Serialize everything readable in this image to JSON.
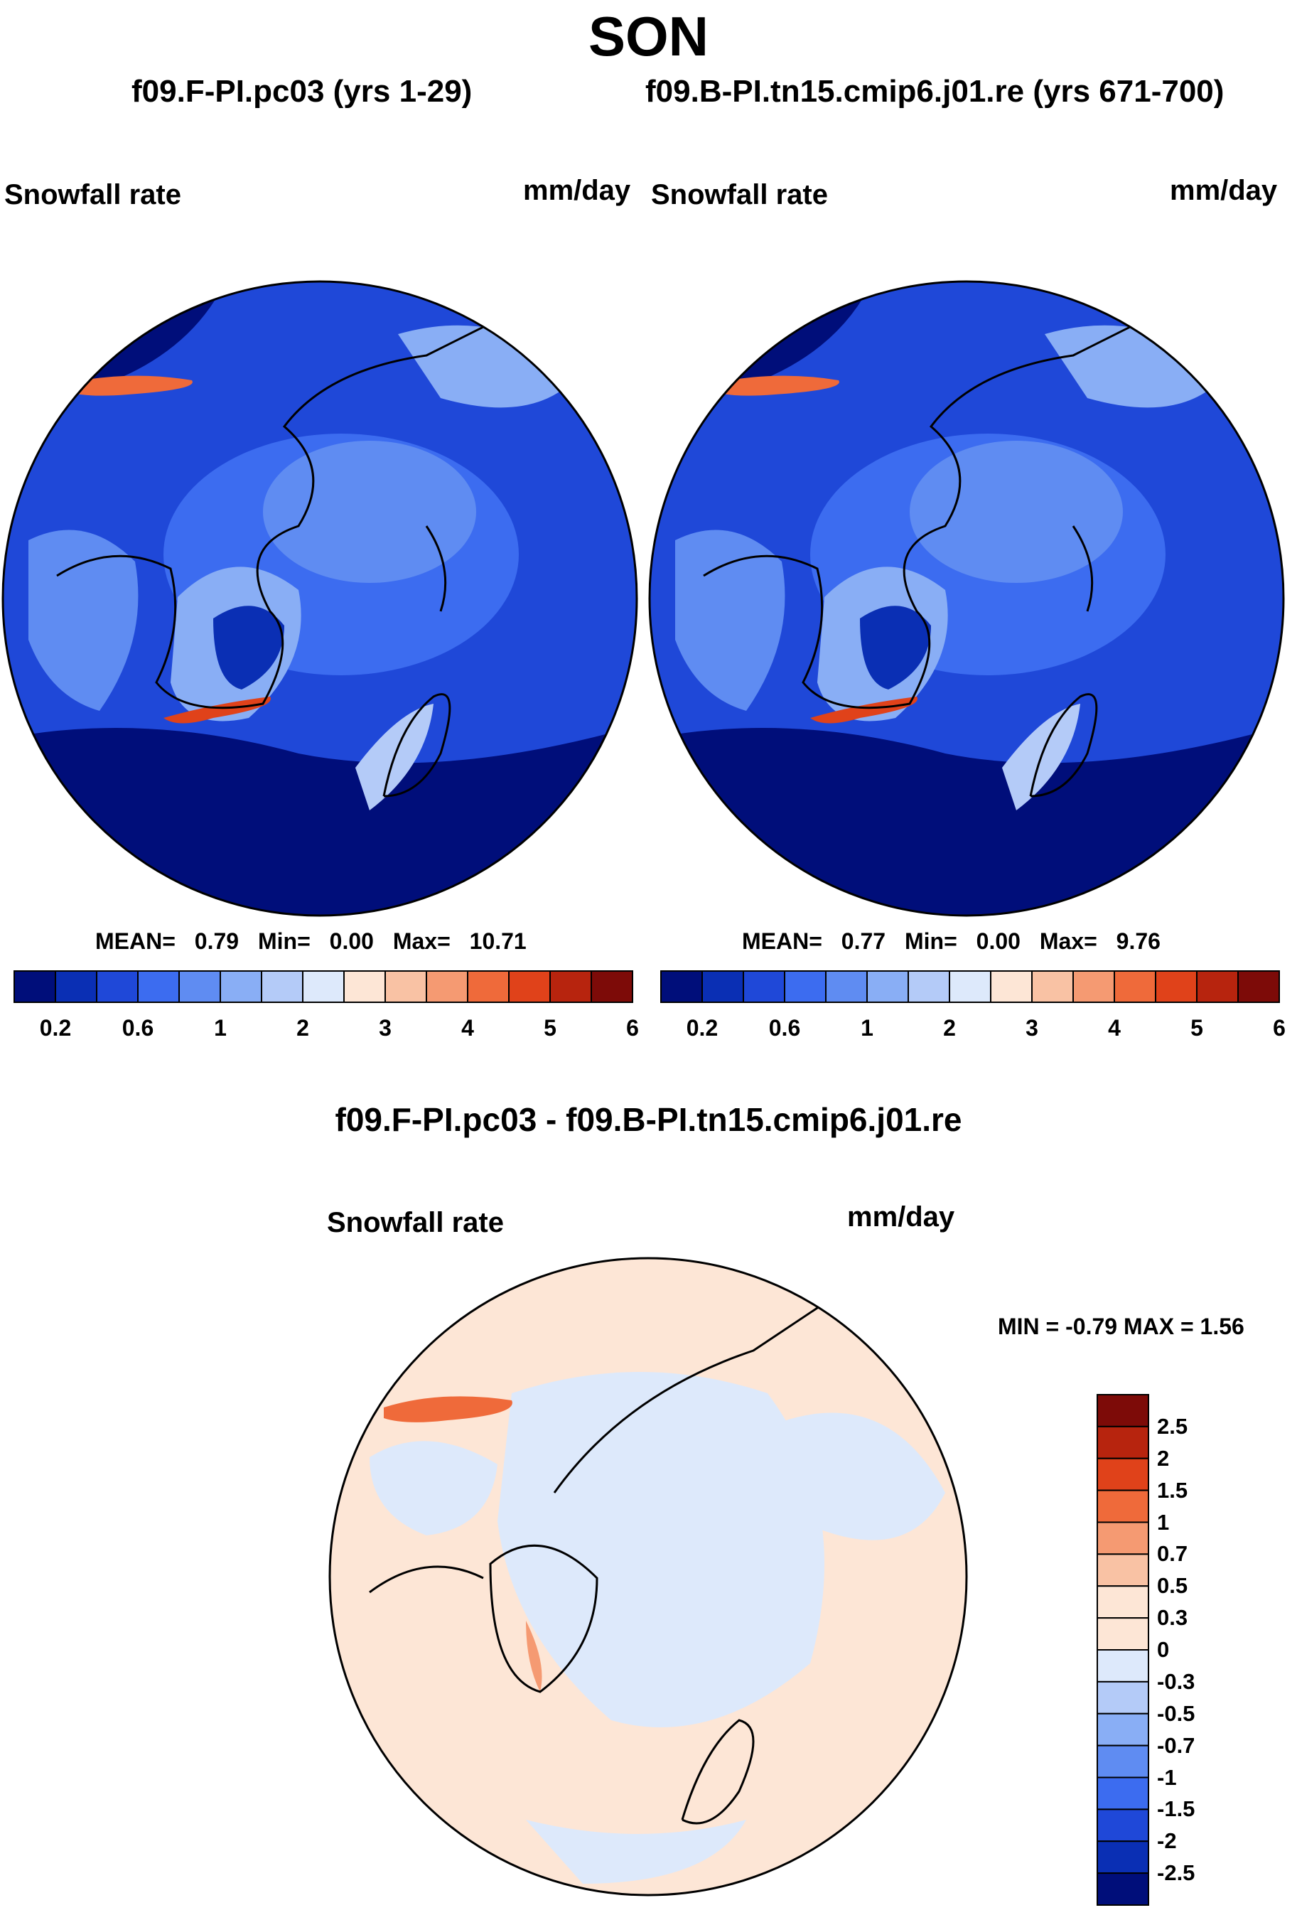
{
  "figure": {
    "season": "SON",
    "case_left": "f09.F-PI.pc03 (yrs 1-29)",
    "case_right": "f09.B-PI.tn15.cmip6.j01.re (yrs 671-700)",
    "diff_title": "f09.F-PI.pc03 - f09.B-PI.tn15.cmip6.j01.re"
  },
  "panels": {
    "left": {
      "variable": "Snowfall rate",
      "units": "mm/day",
      "stats": {
        "mean_label": "MEAN=",
        "mean": "0.79",
        "min_label": "Min=",
        "min": "0.00",
        "max_label": "Max=",
        "max": "10.71"
      }
    },
    "right": {
      "variable": "Snowfall rate",
      "units": "mm/day",
      "stats": {
        "mean_label": "MEAN=",
        "mean": "0.77",
        "min_label": "Min=",
        "min": "0.00",
        "max_label": "Max=",
        "max": "9.76"
      }
    },
    "diff": {
      "variable": "Snowfall rate",
      "units": "mm/day",
      "minmax": "MIN = -0.79 MAX = 1.56"
    }
  },
  "colorbars": {
    "abs": {
      "tick_labels": [
        "0.2",
        "0.6",
        "1",
        "2",
        "3",
        "4",
        "5",
        "6"
      ],
      "colors": [
        "#000e7a",
        "#0a2fb4",
        "#1f48d8",
        "#3c6cf0",
        "#5f8cf2",
        "#89aef5",
        "#b4cbf8",
        "#dde9fb",
        "#fde6d6",
        "#f9c2a4",
        "#f59a72",
        "#ef6a3a",
        "#e0421a",
        "#b7240e",
        "#7d0b08"
      ]
    },
    "diff": {
      "tick_labels": [
        "2.5",
        "2",
        "1.5",
        "1",
        "0.7",
        "0.5",
        "0.3",
        "0",
        "-0.3",
        "-0.5",
        "-0.7",
        "-1",
        "-1.5",
        "-2",
        "-2.5"
      ],
      "colors": [
        "#7d0b08",
        "#b7240e",
        "#e0421a",
        "#ef6a3a",
        "#f59a72",
        "#f9c2a4",
        "#fde6d6",
        "#fde6d6",
        "#dde9fb",
        "#b4cbf8",
        "#89aef5",
        "#5f8cf2",
        "#3c6cf0",
        "#1f48d8",
        "#0a2fb4",
        "#000e7a"
      ]
    }
  },
  "chart_data": [
    {
      "type": "heatmap",
      "title": "f09.F-PI.pc03 (yrs 1-29)",
      "variable": "Snowfall rate",
      "units": "mm/day",
      "projection": "north polar stereographic",
      "mean": 0.79,
      "min": 0.0,
      "max": 10.71,
      "colorbar_levels": [
        0.2,
        0.4,
        0.6,
        0.8,
        1,
        1.5,
        2,
        2.5,
        3,
        3.5,
        4,
        4.5,
        5,
        5.5,
        6
      ]
    },
    {
      "type": "heatmap",
      "title": "f09.B-PI.tn15.cmip6.j01.re (yrs 671-700)",
      "variable": "Snowfall rate",
      "units": "mm/day",
      "projection": "north polar stereographic",
      "mean": 0.77,
      "min": 0.0,
      "max": 9.76,
      "colorbar_levels": [
        0.2,
        0.4,
        0.6,
        0.8,
        1,
        1.5,
        2,
        2.5,
        3,
        3.5,
        4,
        4.5,
        5,
        5.5,
        6
      ]
    },
    {
      "type": "heatmap",
      "title": "f09.F-PI.pc03 - f09.B-PI.tn15.cmip6.j01.re",
      "variable": "Snowfall rate",
      "units": "mm/day",
      "projection": "north polar stereographic",
      "min": -0.79,
      "max": 1.56,
      "colorbar_levels": [
        -2.5,
        -2,
        -1.5,
        -1,
        -0.7,
        -0.5,
        -0.3,
        0,
        0.3,
        0.5,
        0.7,
        1,
        1.5,
        2,
        2.5
      ]
    }
  ]
}
